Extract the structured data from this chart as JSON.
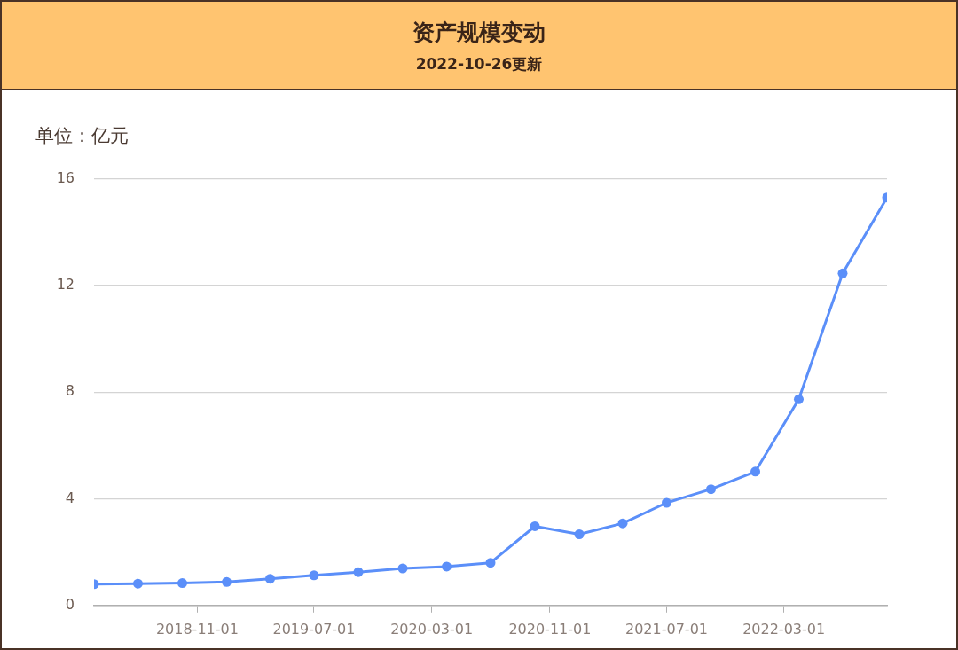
{
  "chart_data": {
    "type": "line",
    "title": "资产规模变动",
    "subtitle": "2022-10-26更新",
    "ylabel": "单位：亿元",
    "x": [
      "2018-04-01",
      "2018-07-01",
      "2018-10-01",
      "2019-01-01",
      "2019-04-01",
      "2019-07-01",
      "2019-10-01",
      "2020-01-01",
      "2020-04-01",
      "2020-07-01",
      "2020-10-01",
      "2021-01-01",
      "2021-04-01",
      "2021-07-01",
      "2021-10-01",
      "2022-01-01",
      "2022-04-01",
      "2022-07-01",
      "2022-10-01"
    ],
    "series": [
      {
        "color": "#5b8ff9",
        "values": [
          0.8,
          0.82,
          0.84,
          0.88,
          1.0,
          1.13,
          1.25,
          1.39,
          1.46,
          1.6,
          2.97,
          2.67,
          3.08,
          3.85,
          4.36,
          5.02,
          7.73,
          12.45,
          15.3
        ]
      }
    ],
    "xlim": [
      "2018-04-01",
      "2022-10-01"
    ],
    "xticks": [
      "2018-11-01",
      "2019-07-01",
      "2020-03-01",
      "2020-11-01",
      "2021-07-01",
      "2022-03-01"
    ],
    "ylim": [
      0,
      16
    ],
    "yticks": [
      0,
      4,
      8,
      12,
      16
    ],
    "grid": "y",
    "legend": false,
    "marker": "circle",
    "line_style": "solid"
  }
}
